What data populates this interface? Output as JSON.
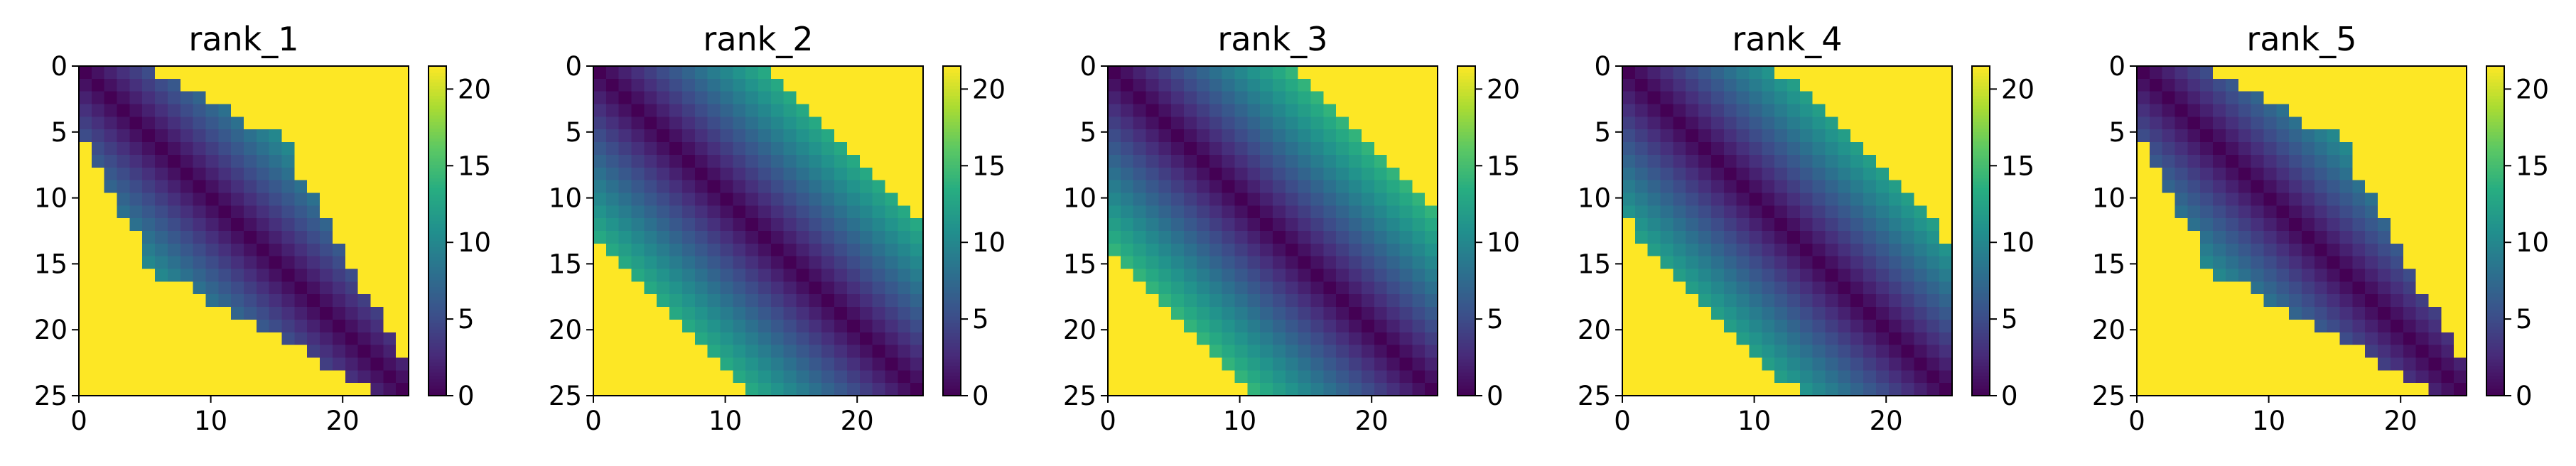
{
  "chart_data": [
    {
      "type": "heatmap",
      "title": "rank_1",
      "rows": 26,
      "cols": 26,
      "xlim": [
        0,
        25
      ],
      "ylim": [
        25,
        0
      ],
      "x_ticks": [
        "0",
        "10",
        "20"
      ],
      "y_ticks": [
        "0",
        "5",
        "10",
        "15",
        "20",
        "25"
      ],
      "colorbar_ticks": [
        "0",
        "5",
        "10",
        "15",
        "20"
      ],
      "value_range": [
        0,
        21.5
      ],
      "fill_value": 21.5,
      "colormap": "viridis",
      "band_halfwidth": [
        5,
        6,
        7,
        8,
        9,
        10,
        10,
        9,
        8,
        9,
        10,
        10,
        9,
        8,
        9,
        10,
        10,
        9,
        8,
        7,
        6,
        5,
        4,
        4,
        3,
        2
      ]
    },
    {
      "type": "heatmap",
      "title": "rank_2",
      "rows": 26,
      "cols": 26,
      "xlim": [
        0,
        25
      ],
      "ylim": [
        25,
        0
      ],
      "x_ticks": [
        "0",
        "10",
        "20"
      ],
      "y_ticks": [
        "0",
        "5",
        "10",
        "15",
        "20",
        "25"
      ],
      "colorbar_ticks": [
        "0",
        "5",
        "10",
        "15",
        "20"
      ],
      "value_range": [
        0,
        21.5
      ],
      "fill_value": 21.5,
      "colormap": "viridis",
      "band_halfwidth": [
        13,
        13,
        13,
        13,
        13,
        13,
        13,
        13,
        13,
        13,
        13,
        13,
        13,
        13,
        13,
        13,
        13,
        13,
        13,
        13,
        13,
        13,
        13,
        13,
        13,
        13
      ]
    },
    {
      "type": "heatmap",
      "title": "rank_3",
      "rows": 26,
      "cols": 26,
      "xlim": [
        0,
        25
      ],
      "ylim": [
        25,
        0
      ],
      "x_ticks": [
        "0",
        "10",
        "20"
      ],
      "y_ticks": [
        "0",
        "5",
        "10",
        "15",
        "20",
        "25"
      ],
      "colorbar_ticks": [
        "0",
        "5",
        "10",
        "15",
        "20"
      ],
      "value_range": [
        0,
        21.5
      ],
      "fill_value": 21.5,
      "colormap": "viridis",
      "band_halfwidth": [
        14,
        14,
        14,
        14,
        14,
        14,
        14,
        14,
        14,
        14,
        14,
        14,
        14,
        14,
        14,
        14,
        14,
        14,
        14,
        14,
        14,
        14,
        14,
        14,
        14,
        14
      ]
    },
    {
      "type": "heatmap",
      "title": "rank_4",
      "rows": 26,
      "cols": 26,
      "xlim": [
        0,
        25
      ],
      "ylim": [
        25,
        0
      ],
      "x_ticks": [
        "0",
        "10",
        "20"
      ],
      "y_ticks": [
        "0",
        "5",
        "10",
        "15",
        "20",
        "25"
      ],
      "colorbar_ticks": [
        "0",
        "5",
        "10",
        "15",
        "20"
      ],
      "value_range": [
        0,
        21.5
      ],
      "fill_value": 21.5,
      "colormap": "viridis",
      "band_halfwidth": [
        11,
        12,
        12,
        12,
        12,
        12,
        12,
        12,
        12,
        12,
        12,
        12,
        12,
        12,
        12,
        12,
        12,
        12,
        12,
        12,
        12,
        12,
        12,
        12,
        12,
        11
      ]
    },
    {
      "type": "heatmap",
      "title": "rank_5",
      "rows": 26,
      "cols": 26,
      "xlim": [
        0,
        25
      ],
      "ylim": [
        25,
        0
      ],
      "x_ticks": [
        "0",
        "10",
        "20"
      ],
      "y_ticks": [
        "0",
        "5",
        "10",
        "15",
        "20",
        "25"
      ],
      "colorbar_ticks": [
        "0",
        "5",
        "10",
        "15",
        "20"
      ],
      "value_range": [
        0,
        21.5
      ],
      "fill_value": 21.5,
      "colormap": "viridis",
      "band_halfwidth": [
        5,
        6,
        7,
        8,
        9,
        10,
        10,
        9,
        8,
        9,
        10,
        10,
        9,
        8,
        9,
        10,
        10,
        9,
        8,
        7,
        6,
        5,
        4,
        4,
        3,
        2
      ]
    }
  ]
}
